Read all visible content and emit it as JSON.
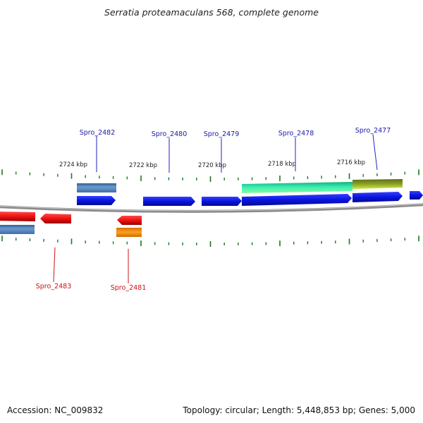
{
  "title": "Serratia proteamaculans 568, complete genome",
  "footer": {
    "accession": "Accession: NC_009832",
    "topology": "Topology: circular; Length: 5,448,853 bp; Genes: 5,000"
  },
  "scale_labels": [
    "2724 kbp",
    "2722 kbp",
    "2720 kbp",
    "2718 kbp",
    "2716 kbp"
  ],
  "gene_labels_top": [
    "Spro_2482",
    "Spro_2480",
    "Spro_2479",
    "Spro_2478",
    "Spro_2477"
  ],
  "gene_labels_bottom": [
    "Spro_2483",
    "Spro_2481"
  ],
  "colors": {
    "forward_cds": "#0a14e0",
    "reverse_cds": "#ee1111",
    "steel_feature": "#4a7fb8",
    "orange_feature": "#ff8c00",
    "green_feature": "#22e6a0",
    "olive_feature": "#7a8f20",
    "label_top": "#1a1aaa",
    "label_bottom": "#cc1111",
    "tick": "#1a7a1a",
    "backbone": "#888888"
  }
}
